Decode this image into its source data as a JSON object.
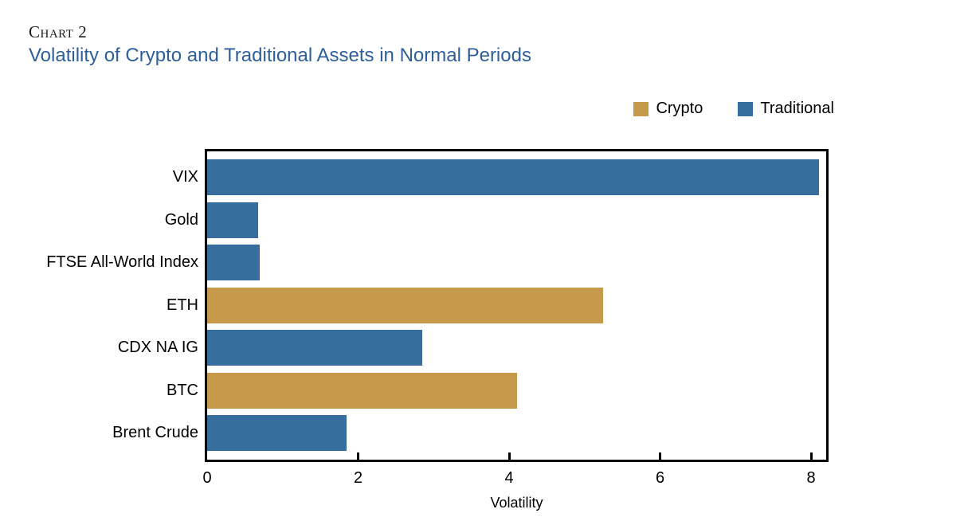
{
  "header": {
    "chart_label": "Chart 2",
    "title": "Volatility of Crypto and Traditional Assets in Normal Periods",
    "title_color": "#2E5F9B"
  },
  "legend": {
    "position": "top-right",
    "items": [
      {
        "label": "Crypto",
        "color": "#C79A4B"
      },
      {
        "label": "Traditional",
        "color": "#376E9E"
      }
    ]
  },
  "chart_data": {
    "type": "bar",
    "orientation": "horizontal",
    "title": "Volatility of Crypto and Traditional Assets in Normal Periods",
    "categories": [
      "VIX",
      "Gold",
      "FTSE All-World Index",
      "ETH",
      "CDX NA IG",
      "BTC",
      "Brent Crude"
    ],
    "values": [
      8.1,
      0.68,
      0.7,
      5.25,
      2.85,
      4.1,
      1.85
    ],
    "series_group": [
      "Traditional",
      "Traditional",
      "Traditional",
      "Crypto",
      "Traditional",
      "Crypto",
      "Traditional"
    ],
    "group_colors": {
      "Crypto": "#C79A4B",
      "Traditional": "#376E9E"
    },
    "xlabel": "Volatility",
    "xlim": [
      0,
      8.2
    ],
    "x_ticks": [
      0,
      2,
      4,
      6,
      8
    ],
    "grid": false,
    "legend_position": "top-right",
    "bar_border": "none",
    "axis_color": "#000000"
  }
}
